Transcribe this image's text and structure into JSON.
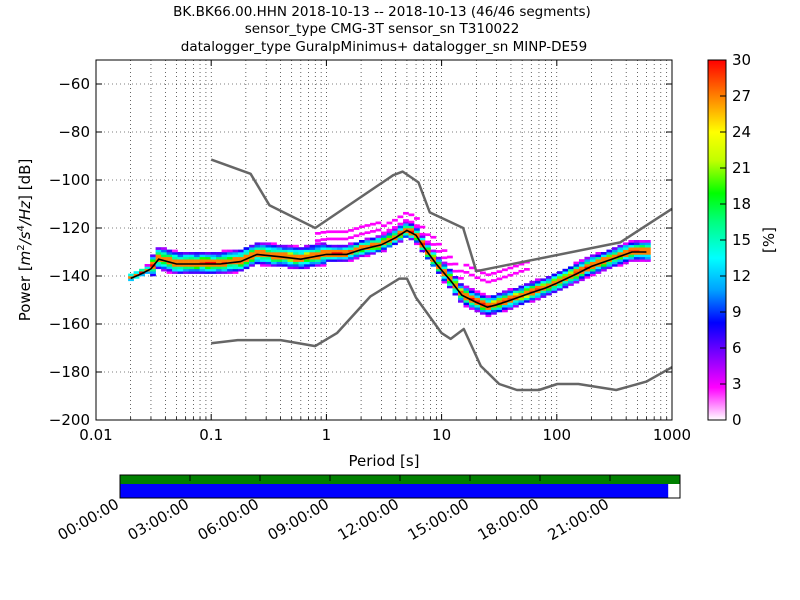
{
  "header": {
    "title_lines": [
      "BK.BK66.00.HHN   2018-10-13 -- 2018-10-13  (46/46 segments)",
      "sensor_type CMG-3T sensor_sn T310022",
      "datalogger_type GuralpMinimus+ datalogger_sn MINP-DE59"
    ]
  },
  "chart_data": {
    "type": "heatmap",
    "xlabel": "Period [s]",
    "ylabel": "Power [m^2/s^4/Hz] [dB]",
    "x_scale": "log",
    "xlim": [
      0.01,
      1000
    ],
    "ylim": [
      -200,
      -50
    ],
    "x_ticks": [
      0.01,
      0.1,
      1,
      10,
      100,
      1000
    ],
    "x_tick_labels": [
      "0.01",
      "0.1",
      "1",
      "10",
      "100",
      "1000"
    ],
    "y_ticks": [
      -200,
      -180,
      -160,
      -140,
      -120,
      -100,
      -80,
      -60
    ],
    "y_tick_labels": [
      "−200",
      "−180",
      "−160",
      "−140",
      "−120",
      "−100",
      "−80",
      "−60"
    ],
    "grid": true,
    "colorbar": {
      "label": "[%]",
      "range": [
        0,
        30
      ],
      "ticks": [
        0,
        3,
        6,
        9,
        12,
        15,
        18,
        21,
        24,
        27,
        30
      ],
      "colors": [
        "#ffffff",
        "#ff00ff",
        "#8000ff",
        "#0000ff",
        "#00a0ff",
        "#00ffff",
        "#00ff80",
        "#00ff00",
        "#c0ff00",
        "#ffff00",
        "#ff8000",
        "#ff0000"
      ]
    },
    "noise_models": [
      {
        "period": [
          0.1,
          0.22,
          0.32,
          0.8,
          3.8,
          4.6,
          6.3,
          7.9,
          15.4,
          20,
          354.8,
          1000
        ],
        "power": [
          -91.5,
          -97.4,
          -110.5,
          -120,
          -98,
          -96.5,
          -101,
          -113.5,
          -120,
          -138,
          -126,
          -112
        ]
      },
      {
        "period": [
          0.1,
          0.17,
          0.4,
          0.8,
          1.24,
          2.4,
          4.3,
          5,
          6,
          10,
          12,
          15.6,
          21.9,
          31.6,
          45,
          70,
          101,
          154,
          328,
          600,
          1000
        ],
        "power": [
          -168,
          -166.7,
          -166.7,
          -169.2,
          -163.7,
          -148.6,
          -141.1,
          -141.1,
          -149,
          -163.8,
          -166.2,
          -162.1,
          -177.5,
          -185,
          -187.5,
          -187.5,
          -185,
          -185,
          -187.5,
          -184,
          -178
        ]
      }
    ],
    "mode_line": {
      "period": [
        0.02,
        0.025,
        0.03,
        0.035,
        0.05,
        0.08,
        0.12,
        0.18,
        0.25,
        0.4,
        0.6,
        1,
        1.5,
        2,
        3,
        4,
        5,
        6,
        7,
        9,
        12,
        15,
        20,
        25,
        30,
        40,
        60,
        80,
        100,
        150,
        200,
        300,
        450,
        600
      ],
      "power": [
        -141,
        -139,
        -137,
        -133,
        -135,
        -135,
        -135,
        -134,
        -131,
        -132,
        -133,
        -131,
        -131,
        -129,
        -127,
        -124,
        -121,
        -123,
        -128,
        -135,
        -142,
        -148,
        -151,
        -153,
        -152,
        -150,
        -147,
        -145,
        -143,
        -139,
        -136,
        -133,
        -130,
        -130
      ]
    }
  },
  "timeline": {
    "labels": [
      "00:00:00",
      "03:00:00",
      "06:00:00",
      "09:00:00",
      "12:00:00",
      "15:00:00",
      "18:00:00",
      "21:00:00"
    ],
    "coverage_fraction": 0.979,
    "colors": {
      "top_bar": "#008000",
      "bottom_bar": "#0000ff"
    }
  }
}
